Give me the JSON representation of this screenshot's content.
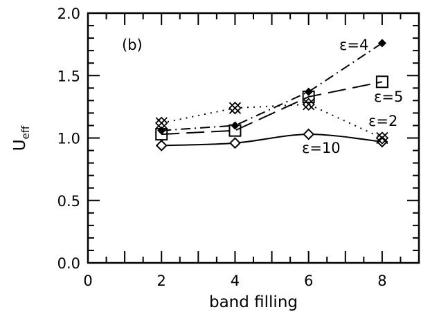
{
  "chart_data": {
    "type": "line",
    "panel_label": "(b)",
    "xlabel": "band filling",
    "ylabel_main": "U",
    "ylabel_sub": "eff",
    "xlim": [
      0,
      9
    ],
    "ylim": [
      0,
      2
    ],
    "x_ticks": [
      "0",
      "2",
      "4",
      "6",
      "8"
    ],
    "y_ticks": [
      "0.0",
      "0.5",
      "1.0",
      "1.5",
      "2.0"
    ],
    "series": [
      {
        "name": "ε=10",
        "x": [
          2,
          4,
          6,
          8
        ],
        "values": [
          0.94,
          0.96,
          1.03,
          0.97
        ],
        "marker": "diamond",
        "line": "solid"
      },
      {
        "name": "ε=5",
        "x": [
          2,
          4,
          6,
          8
        ],
        "values": [
          1.03,
          1.06,
          1.33,
          1.45
        ],
        "marker": "square",
        "line": "longdash"
      },
      {
        "name": "ε=4",
        "x": [
          2,
          4,
          6,
          8
        ],
        "values": [
          1.06,
          1.1,
          1.37,
          1.76
        ],
        "marker": "small-diamond",
        "line": "dashdot"
      },
      {
        "name": "ε=2",
        "x": [
          2,
          4,
          6,
          8
        ],
        "values": [
          1.12,
          1.24,
          1.27,
          1.0
        ],
        "marker": "diamond-x",
        "line": "dotted"
      }
    ]
  }
}
